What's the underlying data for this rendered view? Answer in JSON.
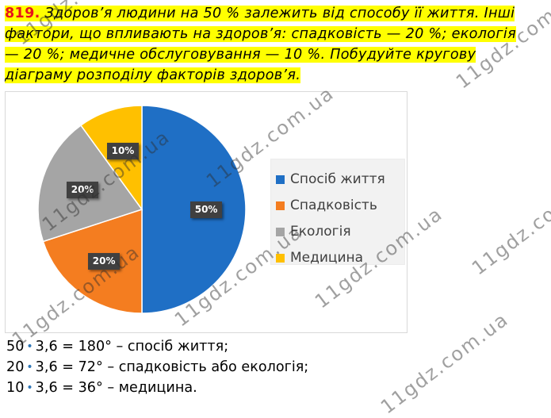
{
  "problem": {
    "number": "819.",
    "text_line1": " Здоров’я людини на 50 % залежить від способу її життя. Інші",
    "text_line2": "фактори, що впливають на здоров’я: спадковість — 20 %; екологія",
    "text_line3": "— 20 %; медичне обслуговування — 10 %. Побудуйте кругову",
    "text_line4": "діаграму розподілу факторів здоров’я."
  },
  "chart_data": {
    "type": "pie",
    "title": "",
    "categories": [
      "Спосіб життя",
      "Спадковість",
      "Екологія",
      "Медицина"
    ],
    "values": [
      50,
      20,
      20,
      10
    ],
    "data_labels": [
      "50%",
      "20%",
      "20%",
      "10%"
    ],
    "colors": [
      "#1f6fc5",
      "#f47d20",
      "#a5a5a5",
      "#ffc000"
    ],
    "legend_position": "right"
  },
  "calculations": [
    {
      "factor": "50",
      "dot": "•",
      "rest": "3,6 = 180° – спосіб життя;"
    },
    {
      "factor": "20",
      "dot": "•",
      "rest": "3,6 = 72° – спадковість або екологія;"
    },
    {
      "factor": "10",
      "dot": "•",
      "rest": "3,6 = 36° – медицина."
    }
  ],
  "watermark": {
    "text": "11gdz.com.ua"
  }
}
